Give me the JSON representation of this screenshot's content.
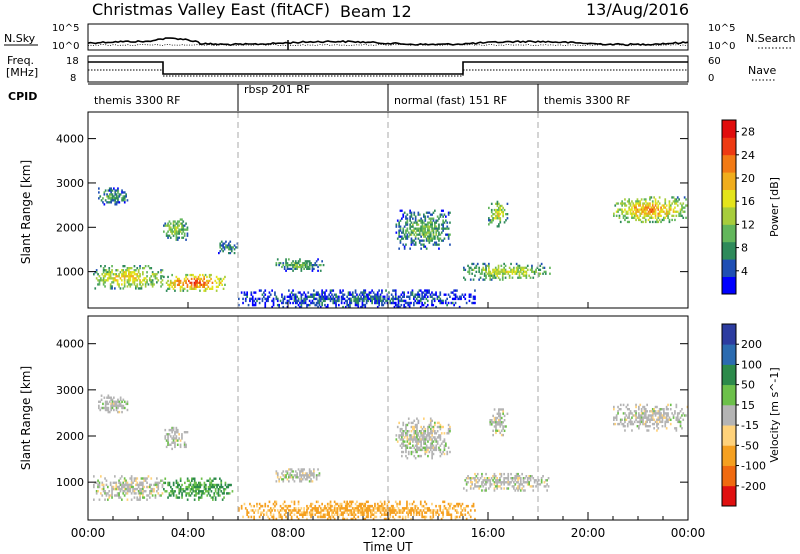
{
  "header": {
    "title": "Christmas Valley East (fitACF)",
    "beam": "Beam 12",
    "date": "13/Aug/2016"
  },
  "top_panels": {
    "nsky_label": "N.Sky",
    "nsky_ticks": [
      "10^5",
      "10^0"
    ],
    "nsearch_label": "N.Search",
    "nsearch_ticks": [
      "10^5",
      "10^0"
    ],
    "freq_label": [
      "Freq.",
      "[MHz]"
    ],
    "freq_ticks": [
      "18",
      "8"
    ],
    "nave_label": "Nave",
    "nave_ticks": [
      "60",
      "0"
    ],
    "cpid_label": "CPID",
    "cpid_segments": [
      {
        "label": "themis 3300 RF",
        "start_h": 0,
        "end_h": 6
      },
      {
        "label": "rbsp 201 RF",
        "start_h": 6,
        "end_h": 12
      },
      {
        "label": "normal (fast) 151 RF",
        "start_h": 12,
        "end_h": 18
      },
      {
        "label": "themis 3300 RF",
        "start_h": 18,
        "end_h": 24
      }
    ]
  },
  "chart_data": [
    {
      "type": "heatmap",
      "name": "power",
      "ylabel": "Slant Range [km]",
      "yticks": [
        1000,
        2000,
        3000,
        4000
      ],
      "ylim": [
        180,
        4600
      ],
      "xlim": [
        0,
        24
      ],
      "colorbar": {
        "label": "Power [dB]",
        "ticks": [
          "4",
          "8",
          "12",
          "16",
          "20",
          "24",
          "28"
        ],
        "colors": [
          "#0000ff",
          "#1f4fb4",
          "#2e8a5a",
          "#62b65b",
          "#a7cd3c",
          "#e4e41b",
          "#f0ad1c",
          "#f27a14",
          "#ee3a12",
          "#e00c0c"
        ]
      },
      "echo_regions": [
        {
          "t0": 0.2,
          "t1": 3.0,
          "r0": 600,
          "r1": 1150,
          "level": 0.65
        },
        {
          "t0": 3.0,
          "t1": 5.5,
          "r0": 550,
          "r1": 950,
          "level": 0.9
        },
        {
          "t0": 0.4,
          "t1": 1.6,
          "r0": 2500,
          "r1": 2900,
          "level": 0.35
        },
        {
          "t0": 3.0,
          "t1": 4.0,
          "r0": 1700,
          "r1": 2200,
          "level": 0.5
        },
        {
          "t0": 5.2,
          "t1": 6.0,
          "r0": 1400,
          "r1": 1700,
          "level": 0.3
        },
        {
          "t0": 7.5,
          "t1": 9.5,
          "r0": 1000,
          "r1": 1300,
          "level": 0.4
        },
        {
          "t0": 6.0,
          "t1": 15.5,
          "r0": 180,
          "r1": 600,
          "level": 0.2
        },
        {
          "t0": 12.3,
          "t1": 14.5,
          "r0": 1500,
          "r1": 2400,
          "level": 0.4
        },
        {
          "t0": 15.0,
          "t1": 18.5,
          "r0": 800,
          "r1": 1200,
          "level": 0.55
        },
        {
          "t0": 16.0,
          "t1": 16.8,
          "r0": 2000,
          "r1": 2600,
          "level": 0.55
        },
        {
          "t0": 21.0,
          "t1": 24.0,
          "r0": 2100,
          "r1": 2700,
          "level": 0.75
        }
      ]
    },
    {
      "type": "heatmap",
      "name": "velocity",
      "ylabel": "Slant Range [km]",
      "yticks": [
        1000,
        2000,
        3000,
        4000
      ],
      "ylim": [
        180,
        4600
      ],
      "xlim": [
        0,
        24
      ],
      "xlabel": "Time UT",
      "xticks": [
        "00:00",
        "04:00",
        "08:00",
        "12:00",
        "16:00",
        "20:00",
        "00:00"
      ],
      "colorbar": {
        "label": "Velocity [m s^-1]",
        "ticks": [
          "200",
          "100",
          "50",
          "15",
          "-15",
          "-50",
          "-100",
          "-200"
        ],
        "colors": [
          "#2c3ca0",
          "#2b6bb0",
          "#2c8a4a",
          "#6cc04a",
          "#b4b4b4",
          "#ffd27a",
          "#f5a020",
          "#f06a10",
          "#e01010"
        ]
      },
      "echo_regions": [
        {
          "t0": 0.2,
          "t1": 3.0,
          "r0": 600,
          "r1": 1150,
          "level": 0.5
        },
        {
          "t0": 3.0,
          "t1": 5.8,
          "r0": 600,
          "r1": 1100,
          "level": 0.32
        },
        {
          "t0": 0.4,
          "t1": 1.6,
          "r0": 2500,
          "r1": 2900,
          "level": 0.5
        },
        {
          "t0": 3.0,
          "t1": 4.0,
          "r0": 1700,
          "r1": 2200,
          "level": 0.5
        },
        {
          "t0": 7.5,
          "t1": 9.5,
          "r0": 1000,
          "r1": 1300,
          "level": 0.5
        },
        {
          "t0": 6.0,
          "t1": 15.5,
          "r0": 180,
          "r1": 600,
          "level": 0.7
        },
        {
          "t0": 12.3,
          "t1": 14.5,
          "r0": 1500,
          "r1": 2400,
          "level": 0.5
        },
        {
          "t0": 15.0,
          "t1": 18.5,
          "r0": 800,
          "r1": 1200,
          "level": 0.5
        },
        {
          "t0": 16.0,
          "t1": 16.8,
          "r0": 2000,
          "r1": 2600,
          "level": 0.5
        },
        {
          "t0": 21.0,
          "t1": 24.0,
          "r0": 2100,
          "r1": 2700,
          "level": 0.5
        }
      ]
    }
  ]
}
